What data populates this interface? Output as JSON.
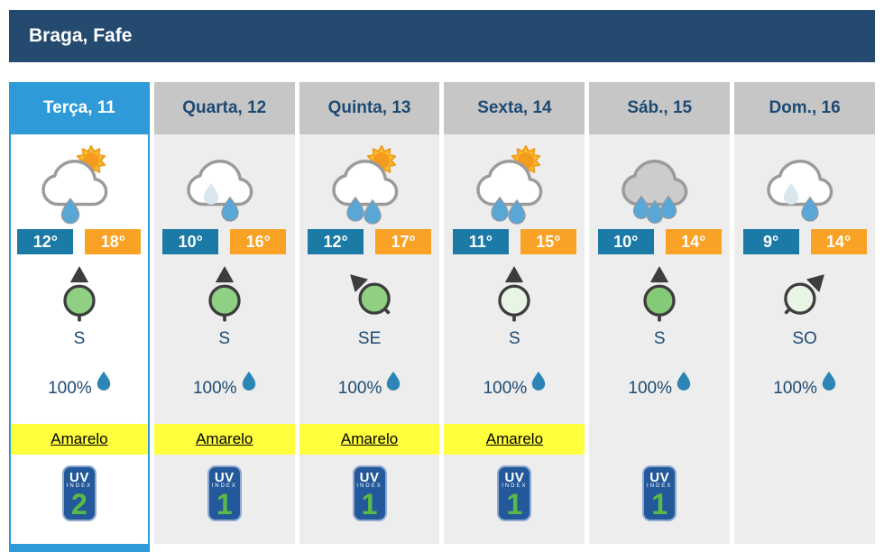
{
  "location": {
    "title": "Braga, Fafe"
  },
  "colors": {
    "header_bg": "#254a70",
    "active_tab": "#2e9ad7",
    "inactive_tab": "#c6c6c6",
    "navy_text": "#1d4a73",
    "temp_min_bg": "#1b7aa6",
    "temp_max_bg": "#f9a226",
    "warning_yellow": "#ffff3d",
    "uv_badge_bg": "#23599b",
    "uv_number_green": "#5bb947",
    "raindrop_blue": "#2c85b5"
  },
  "uv_badge": {
    "line1": "UV",
    "line2": "INDEX"
  },
  "days": [
    {
      "label": "Terça, 11",
      "active": true,
      "icon": "sun-cloud-1drop-icon",
      "temp_min": "12°",
      "temp_max": "18°",
      "wind_dir": "S",
      "wind_fill": "#8fd083",
      "precip": "100%",
      "warning": "Amarelo",
      "uv": "2"
    },
    {
      "label": "Quarta, 12",
      "active": false,
      "icon": "cloud-light-drop-icon",
      "temp_min": "10°",
      "temp_max": "16°",
      "wind_dir": "S",
      "wind_fill": "#8fd083",
      "precip": "100%",
      "warning": "Amarelo",
      "uv": "1"
    },
    {
      "label": "Quinta, 13",
      "active": false,
      "icon": "sun-cloud-2drops-icon",
      "temp_min": "12°",
      "temp_max": "17°",
      "wind_dir": "SE",
      "wind_fill": "#8fd083",
      "precip": "100%",
      "warning": "Amarelo",
      "uv": "1"
    },
    {
      "label": "Sexta, 14",
      "active": false,
      "icon": "sun-cloud-2drops-icon",
      "temp_min": "11°",
      "temp_max": "15°",
      "wind_dir": "S",
      "wind_fill": "#e9f5e4",
      "precip": "100%",
      "warning": "Amarelo",
      "uv": "1"
    },
    {
      "label": "Sáb., 15",
      "active": false,
      "icon": "gray-cloud-3drops-icon",
      "temp_min": "10°",
      "temp_max": "14°",
      "wind_dir": "S",
      "wind_fill": "#85ca77",
      "precip": "100%",
      "warning": null,
      "uv": "1"
    },
    {
      "label": "Dom., 16",
      "active": false,
      "icon": "cloud-light-drop-icon",
      "temp_min": "9°",
      "temp_max": "14°",
      "wind_dir": "SO",
      "wind_fill": "#e9f5e4",
      "precip": "100%",
      "warning": null,
      "uv": null
    }
  ]
}
